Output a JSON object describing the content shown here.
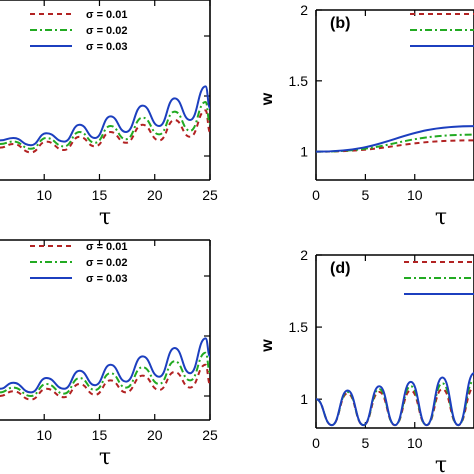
{
  "chart_data": [
    {
      "panel": "",
      "type": "line",
      "xlabel": "τ",
      "ylabel": "",
      "xlim": [
        6,
        25
      ],
      "ylim": [
        0.8,
        2.3
      ],
      "x_ticks": [
        10,
        15,
        20,
        25
      ],
      "y_ticks": [],
      "legend": "top-left",
      "series": [
        {
          "name": "σ = 0.01",
          "color": "#b22222",
          "dash": "5,4",
          "x": [
            6,
            7.2,
            8.8,
            10.2,
            11.8,
            13.2,
            14.6,
            16.0,
            17.4,
            18.9,
            20.4,
            21.8,
            23.2,
            24.6,
            25
          ],
          "y": [
            1.07,
            1.1,
            1.03,
            1.12,
            1.05,
            1.16,
            1.08,
            1.2,
            1.11,
            1.26,
            1.13,
            1.3,
            1.16,
            1.38,
            1.2
          ]
        },
        {
          "name": "σ = 0.02",
          "color": "#22aa22",
          "dash": "7,3,2,3",
          "x": [
            6,
            7.2,
            8.8,
            10.2,
            11.8,
            13.2,
            14.6,
            16.0,
            17.4,
            18.9,
            20.4,
            21.8,
            23.2,
            24.6,
            25
          ],
          "y": [
            1.1,
            1.12,
            1.06,
            1.15,
            1.08,
            1.2,
            1.11,
            1.25,
            1.14,
            1.32,
            1.18,
            1.37,
            1.21,
            1.45,
            1.27
          ]
        },
        {
          "name": "σ = 0.03",
          "color": "#1c3fbf",
          "dash": "",
          "x": [
            6,
            7.2,
            8.8,
            10.2,
            11.8,
            13.2,
            14.6,
            16.0,
            17.4,
            18.9,
            20.4,
            21.8,
            23.2,
            24.6,
            25
          ],
          "y": [
            1.13,
            1.15,
            1.09,
            1.19,
            1.12,
            1.26,
            1.15,
            1.33,
            1.2,
            1.42,
            1.25,
            1.48,
            1.3,
            1.58,
            1.4
          ]
        }
      ]
    },
    {
      "panel": "(b)",
      "type": "line",
      "xlabel": "τ",
      "ylabel": "w",
      "xlim": [
        0,
        16
      ],
      "ylim": [
        0.8,
        2.0
      ],
      "x_ticks": [
        0,
        5,
        10
      ],
      "y_ticks": [
        1,
        1.5,
        2
      ],
      "legend": "top-right",
      "series": [
        {
          "name": "",
          "color": "#b22222",
          "dash": "5,4",
          "x": [
            0,
            16
          ],
          "y": [
            1.0,
            1.08
          ]
        },
        {
          "name": "",
          "color": "#22aa22",
          "dash": "7,3,2,3",
          "x": [
            0,
            16
          ],
          "y": [
            1.0,
            1.12
          ]
        },
        {
          "name": "",
          "color": "#1c3fbf",
          "dash": "",
          "x": [
            0,
            16
          ],
          "y": [
            1.0,
            1.18
          ]
        }
      ]
    },
    {
      "panel": "",
      "type": "line",
      "xlabel": "τ",
      "ylabel": "",
      "xlim": [
        6,
        25
      ],
      "ylim": [
        0.8,
        2.3
      ],
      "x_ticks": [
        10,
        15,
        20,
        25
      ],
      "y_ticks": [],
      "legend": "top-left",
      "series": [
        {
          "name": "σ = 0.01",
          "color": "#b22222",
          "dash": "5,4",
          "x": [
            6,
            7.2,
            8.8,
            10.2,
            11.8,
            13.2,
            14.6,
            16.0,
            17.4,
            18.9,
            20.4,
            21.8,
            23.2,
            24.6,
            25
          ],
          "y": [
            1.0,
            1.04,
            0.97,
            1.06,
            0.99,
            1.1,
            1.01,
            1.13,
            1.03,
            1.17,
            1.05,
            1.2,
            1.07,
            1.26,
            1.1
          ]
        },
        {
          "name": "σ = 0.02",
          "color": "#22aa22",
          "dash": "7,3,2,3",
          "x": [
            6,
            7.2,
            8.8,
            10.2,
            11.8,
            13.2,
            14.6,
            16.0,
            17.4,
            18.9,
            20.4,
            21.8,
            23.2,
            24.6,
            25
          ],
          "y": [
            1.03,
            1.07,
            1.0,
            1.1,
            1.02,
            1.15,
            1.05,
            1.19,
            1.07,
            1.24,
            1.1,
            1.29,
            1.13,
            1.36,
            1.2
          ]
        },
        {
          "name": "σ = 0.03",
          "color": "#1c3fbf",
          "dash": "",
          "x": [
            6,
            7.2,
            8.8,
            10.2,
            11.8,
            13.2,
            14.6,
            16.0,
            17.4,
            18.9,
            20.4,
            21.8,
            23.2,
            24.6,
            25
          ],
          "y": [
            1.06,
            1.11,
            1.03,
            1.15,
            1.06,
            1.21,
            1.09,
            1.26,
            1.12,
            1.33,
            1.16,
            1.4,
            1.19,
            1.48,
            1.33
          ]
        }
      ]
    },
    {
      "panel": "(d)",
      "type": "line",
      "xlabel": "τ",
      "ylabel": "w",
      "xlim": [
        0,
        16
      ],
      "ylim": [
        0.8,
        2.0
      ],
      "x_ticks": [
        0,
        5,
        10
      ],
      "y_ticks": [
        1,
        1.5,
        2
      ],
      "legend": "top-right",
      "series": [
        {
          "name": "",
          "color": "#b22222",
          "dash": "5,4",
          "x": [
            0,
            1.6,
            3.2,
            4.8,
            6.4,
            8.0,
            9.6,
            11.2,
            12.8,
            14.4,
            16
          ],
          "y": [
            1.0,
            0.82,
            1.04,
            0.82,
            1.05,
            0.82,
            1.06,
            0.82,
            1.07,
            0.82,
            1.08
          ]
        },
        {
          "name": "",
          "color": "#22aa22",
          "dash": "7,3,2,3",
          "x": [
            0,
            1.6,
            3.2,
            4.8,
            6.4,
            8.0,
            9.6,
            11.2,
            12.8,
            14.4,
            16
          ],
          "y": [
            1.0,
            0.82,
            1.05,
            0.82,
            1.07,
            0.82,
            1.09,
            0.82,
            1.11,
            0.82,
            1.13
          ]
        },
        {
          "name": "",
          "color": "#1c3fbf",
          "dash": "",
          "x": [
            0,
            1.6,
            3.2,
            4.8,
            6.4,
            8.0,
            9.6,
            11.2,
            12.8,
            14.4,
            16
          ],
          "y": [
            1.0,
            0.82,
            1.06,
            0.82,
            1.09,
            0.82,
            1.12,
            0.82,
            1.15,
            0.82,
            1.18
          ]
        }
      ]
    }
  ]
}
